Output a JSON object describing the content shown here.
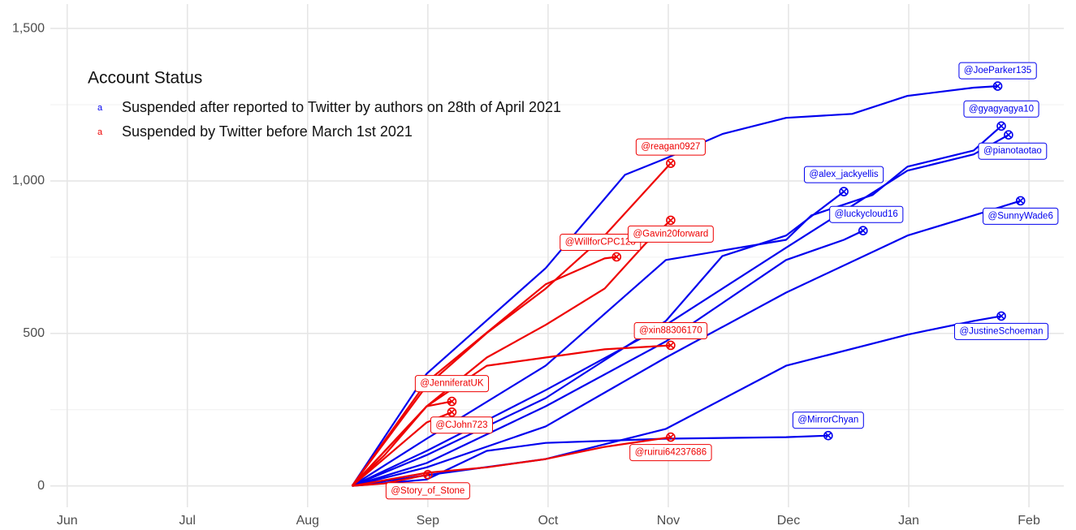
{
  "chart_data": {
    "type": "line",
    "xlim": [
      -0.14,
      8.29
    ],
    "ylim": [
      -70,
      1580
    ],
    "xticks": [
      {
        "value": 0,
        "label": "Jun"
      },
      {
        "value": 1,
        "label": "Jul"
      },
      {
        "value": 2,
        "label": "Aug"
      },
      {
        "value": 3,
        "label": "Sep"
      },
      {
        "value": 4,
        "label": "Oct"
      },
      {
        "value": 5,
        "label": "Nov"
      },
      {
        "value": 6,
        "label": "Dec"
      },
      {
        "value": 7,
        "label": "Jan"
      },
      {
        "value": 8,
        "label": "Feb"
      }
    ],
    "yticks": [
      0,
      500,
      {
        "value": 1000,
        "label": "1,000"
      },
      {
        "value": 1500,
        "label": "1,500"
      }
    ],
    "y_minor_ticks": [
      250,
      750,
      1250
    ],
    "grid": true,
    "legend": {
      "title": "Account Status",
      "key_glyph": "a",
      "position": "top-left",
      "items": [
        {
          "label": "Suspended after reported to Twitter by authors on 28th of April 2021",
          "color": "#0000ee"
        },
        {
          "label": "Suspended by Twitter before March 1st 2021",
          "color": "#ee0000"
        }
      ]
    },
    "series": [
      {
        "name": "@JoeParker135",
        "color": "#0000ee",
        "x": [
          2.37,
          2.99,
          3.98,
          4.64,
          4.98,
          5.45,
          5.98,
          6.53,
          6.99,
          7.54,
          7.74
        ],
        "values": [
          0,
          368,
          714,
          1020,
          1074,
          1154,
          1207,
          1220,
          1279,
          1306,
          1311
        ]
      },
      {
        "name": "@gyagyagya10",
        "color": "#0000ee",
        "x": [
          2.37,
          2.99,
          3.98,
          4.98,
          5.98,
          6.19,
          6.7,
          6.99,
          7.54,
          7.77
        ],
        "values": [
          0,
          155,
          394,
          741,
          807,
          887,
          954,
          1047,
          1100,
          1180
        ]
      },
      {
        "name": "@pianotaotao",
        "color": "#0000ee",
        "x": [
          2.37,
          2.99,
          3.98,
          4.98,
          5.98,
          6.99,
          7.54,
          7.83
        ],
        "values": [
          0,
          115,
          314,
          528,
          781,
          1034,
          1087,
          1151
        ]
      },
      {
        "name": "@alex_jackyellis",
        "color": "#0000ee",
        "x": [
          2.37,
          2.99,
          3.98,
          4.98,
          5.45,
          5.98,
          6.46
        ],
        "values": [
          0,
          101,
          288,
          541,
          754,
          821,
          965
        ]
      },
      {
        "name": "@luckycloud16",
        "color": "#0000ee",
        "x": [
          2.37,
          2.99,
          3.98,
          4.98,
          5.98,
          6.46,
          6.62
        ],
        "values": [
          0,
          75,
          261,
          474,
          741,
          807,
          837
        ]
      },
      {
        "name": "@SunnyWade6",
        "color": "#0000ee",
        "x": [
          2.37,
          2.99,
          3.98,
          4.98,
          5.98,
          6.99,
          7.54,
          7.93
        ],
        "values": [
          0,
          61,
          195,
          421,
          634,
          821,
          887,
          935
        ]
      },
      {
        "name": "@JustineSchoeman",
        "color": "#0000ee",
        "x": [
          2.37,
          2.99,
          3.98,
          4.98,
          5.98,
          6.99,
          7.54,
          7.77
        ],
        "values": [
          0,
          35,
          88,
          187,
          394,
          496,
          541,
          557
        ]
      },
      {
        "name": "@MirrorChyan",
        "color": "#0000ee",
        "x": [
          2.37,
          2.99,
          3.49,
          3.98,
          4.98,
          5.98,
          6.33
        ],
        "values": [
          0,
          21,
          115,
          141,
          155,
          160,
          165
        ]
      },
      {
        "name": "@reagan0927",
        "color": "#ee0000",
        "x": [
          2.37,
          2.99,
          3.49,
          3.98,
          4.47,
          4.81,
          5.02
        ],
        "values": [
          0,
          328,
          501,
          647,
          821,
          967,
          1058
        ]
      },
      {
        "name": "@WillforCPC128",
        "color": "#ee0000",
        "x": [
          2.37,
          2.99,
          3.98,
          4.47,
          4.57
        ],
        "values": [
          0,
          341,
          661,
          746,
          751
        ]
      },
      {
        "name": "@Gavin20forward",
        "color": "#ee0000",
        "x": [
          2.37,
          2.99,
          3.49,
          3.98,
          4.47,
          4.81,
          5.02
        ],
        "values": [
          0,
          261,
          421,
          528,
          647,
          794,
          871
        ]
      },
      {
        "name": "@xin88306170",
        "color": "#ee0000",
        "x": [
          2.37,
          2.99,
          3.49,
          3.98,
          4.47,
          5.02
        ],
        "values": [
          0,
          261,
          394,
          421,
          448,
          461
        ]
      },
      {
        "name": "@JenniferatUK",
        "color": "#ee0000",
        "x": [
          2.37,
          2.64,
          2.99,
          3.2
        ],
        "values": [
          0,
          101,
          261,
          277
        ]
      },
      {
        "name": "@CJohn723",
        "color": "#ee0000",
        "x": [
          2.37,
          2.99,
          3.2
        ],
        "values": [
          0,
          208,
          242
        ]
      },
      {
        "name": "@ruirui64237686",
        "color": "#ee0000",
        "x": [
          2.37,
          2.99,
          3.49,
          3.98,
          4.47,
          5.02
        ],
        "values": [
          0,
          43,
          61,
          88,
          128,
          160
        ]
      },
      {
        "name": "@Story_of_Stone",
        "color": "#ee0000",
        "x": [
          2.37,
          2.64,
          3.0
        ],
        "values": [
          0,
          8,
          37
        ]
      }
    ]
  }
}
